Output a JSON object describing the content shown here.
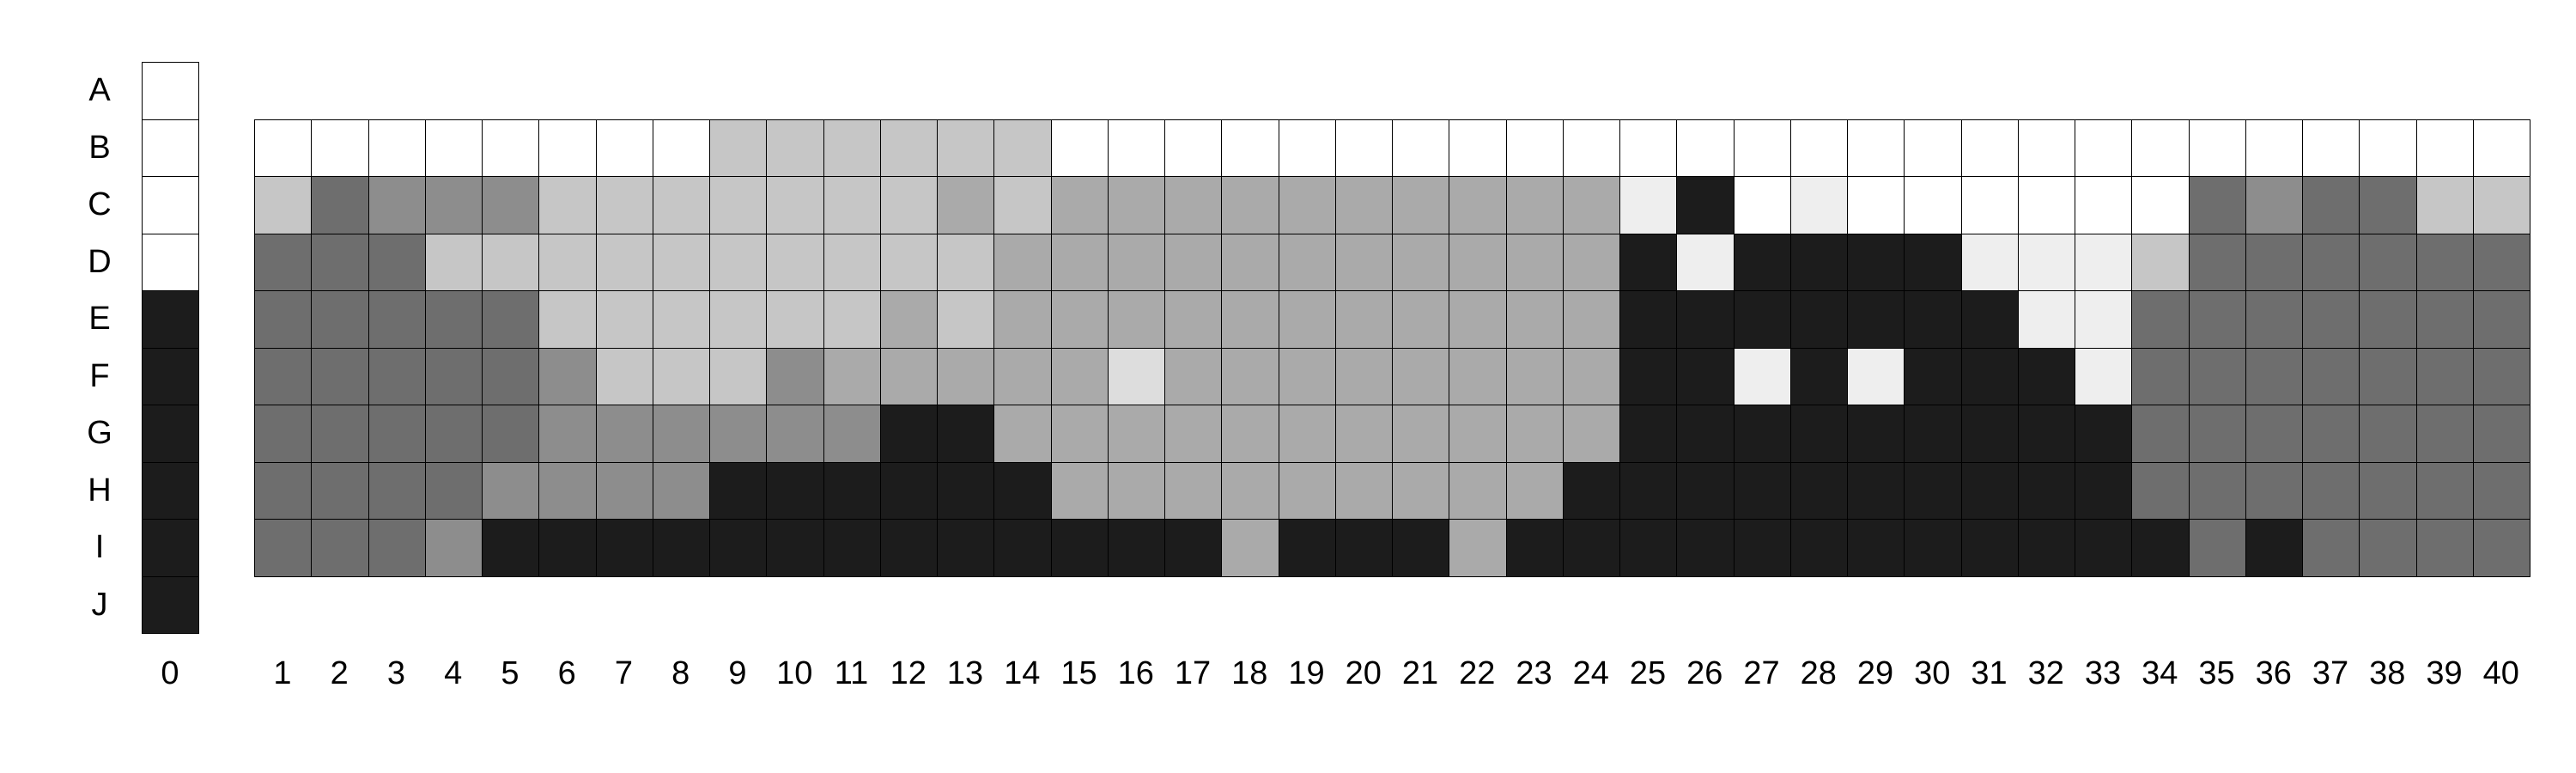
{
  "palette": {
    "W": "#ffffff",
    "P": "#eeeeee",
    "Q": "#dddddd",
    "L": "#c6c6c6",
    "M": "#aaaaaa",
    "N": "#8d8d8d",
    "D": "#6e6e6e",
    "K": "#1c1c1c"
  },
  "key_column": {
    "label": "0",
    "cells": [
      "W",
      "W",
      "W",
      "W",
      "K",
      "K",
      "K",
      "K",
      "K",
      "K"
    ]
  },
  "row_labels": [
    "A",
    "B",
    "C",
    "D",
    "E",
    "F",
    "G",
    "H",
    "I",
    "J"
  ],
  "column_labels": [
    "1",
    "2",
    "3",
    "4",
    "5",
    "6",
    "7",
    "8",
    "9",
    "10",
    "11",
    "12",
    "13",
    "14",
    "15",
    "16",
    "17",
    "18",
    "19",
    "20",
    "21",
    "22",
    "23",
    "24",
    "25",
    "26",
    "27",
    "28",
    "29",
    "30",
    "31",
    "32",
    "33",
    "34",
    "35",
    "36",
    "37",
    "38",
    "39",
    "40"
  ],
  "grid": {
    "row_labels": [
      "B",
      "C",
      "D",
      "E",
      "F",
      "G",
      "H",
      "I"
    ],
    "rows": [
      "WWWWWWWWLLLLLLWWWWWWWWWWWWWWWWWWWWWWWWWW",
      "LDNNNLLLLLLLMLMMMMMMMMMMPKWPWWWWWWDNDDLL",
      "DDDLLLLLLLLLLMMMMMMMMMMMKPKKKKPPPLDDDDDD",
      "DDDDDLLLLLLMLMMMMMMMMMMMKKKKKKKPPDDDDDDD",
      "DDDDDNLLLNMMMMMQMMMMMMMMKKPKPKKKPDDDDDDD",
      "DDDDDNNNNNNKKMMMMMMMMMMMKKKKKKKKKDDDDDDD",
      "DDDDNNNNKKKKKKMMMMMMMMMKKKKKKKKKKDDDDDDD",
      "DDDNKKKKKKKKKKKKKMKKKMKKKKKKKKKKKKDKDDDD"
    ]
  }
}
